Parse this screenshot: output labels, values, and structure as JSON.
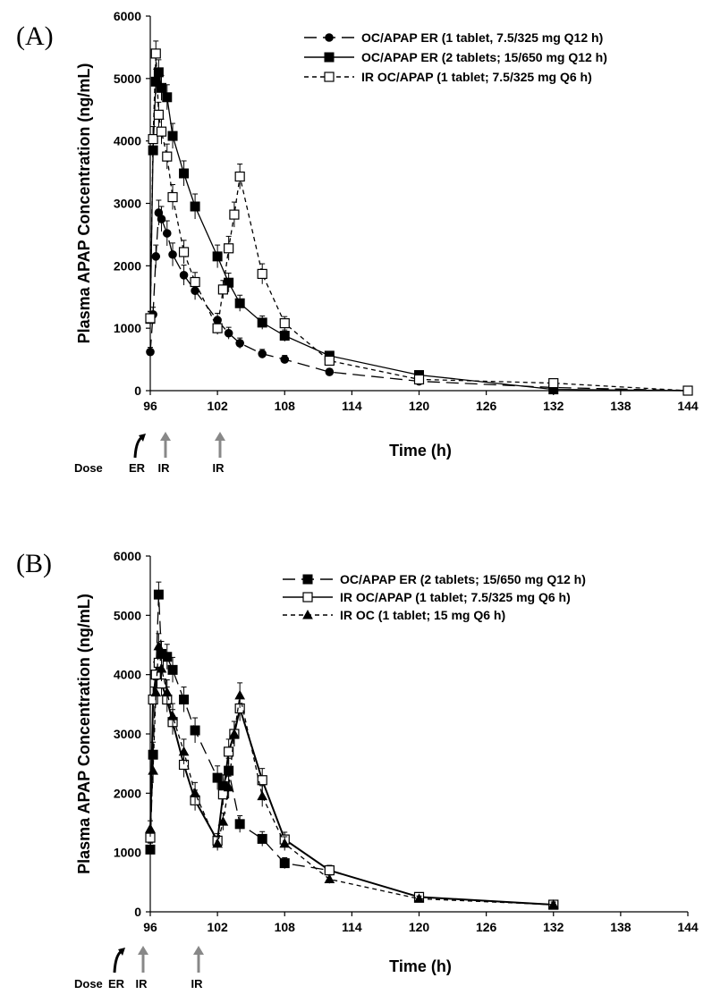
{
  "chart_data": [
    {
      "panel": "(A)",
      "type": "line",
      "xlabel": "Time (h)",
      "ylabel": "Plasma APAP Concentration (ng/mL)",
      "xlim": [
        96,
        144
      ],
      "ylim": [
        0,
        6000
      ],
      "xticks": [
        "96",
        "102",
        "108",
        "114",
        "120",
        "126",
        "132",
        "138",
        "144"
      ],
      "yticks": [
        "0",
        "1000",
        "2000",
        "3000",
        "4000",
        "5000",
        "6000"
      ],
      "legend_position": "top-right",
      "series": [
        {
          "name": "OC/APAP ER (1 tablet, 7.5/325 mg Q12 h)",
          "marker": "circle-filled",
          "dash": "long-dash",
          "x": [
            96,
            96.25,
            96.5,
            96.75,
            97,
            97.5,
            98,
            99,
            100,
            102,
            103,
            104,
            106,
            108,
            112,
            120,
            132,
            144
          ],
          "y": [
            620,
            1220,
            2150,
            2850,
            2750,
            2520,
            2180,
            1850,
            1600,
            1130,
            920,
            760,
            590,
            500,
            300,
            150,
            50,
            0
          ]
        },
        {
          "name": "OC/APAP ER (2 tablets; 15/650 mg Q12 h)",
          "marker": "square-filled",
          "dash": "solid",
          "x": [
            96,
            96.25,
            96.5,
            96.75,
            97,
            97.5,
            98,
            99,
            100,
            102,
            103,
            104,
            106,
            108,
            112,
            120,
            132,
            144
          ],
          "y": [
            1150,
            3850,
            4950,
            5100,
            4850,
            4700,
            4080,
            3480,
            2950,
            2150,
            1730,
            1400,
            1090,
            880,
            560,
            250,
            20,
            0
          ]
        },
        {
          "name": "IR OC/APAP (1 tablet; 7.5/325 mg Q6 h)",
          "marker": "square-open",
          "dash": "short-dash",
          "x": [
            96,
            96.25,
            96.5,
            96.75,
            97,
            97.5,
            98,
            99,
            100,
            102,
            102.5,
            103,
            103.5,
            104,
            106,
            108,
            112,
            120,
            132,
            144
          ],
          "y": [
            1160,
            4030,
            5400,
            4420,
            4150,
            3750,
            3100,
            2220,
            1740,
            1000,
            1620,
            2280,
            2820,
            3430,
            1870,
            1080,
            480,
            180,
            120,
            0
          ]
        }
      ]
    },
    {
      "panel": "(B)",
      "type": "line",
      "xlabel": "Time (h)",
      "ylabel": "Plasma APAP Concentration (ng/mL)",
      "xlim": [
        96,
        144
      ],
      "ylim": [
        0,
        6000
      ],
      "xticks": [
        "96",
        "102",
        "108",
        "114",
        "120",
        "126",
        "132",
        "138",
        "144"
      ],
      "yticks": [
        "0",
        "1000",
        "2000",
        "3000",
        "4000",
        "5000",
        "6000"
      ],
      "legend_position": "top-right",
      "series": [
        {
          "name": "OC/APAP ER (2 tablets; 15/650 mg Q12 h)",
          "marker": "square-filled",
          "dash": "long-dash",
          "x": [
            96,
            96.25,
            96.5,
            96.75,
            97,
            97.5,
            98,
            99,
            100,
            102,
            102.5,
            103,
            104,
            106,
            108,
            112,
            120,
            132
          ],
          "y": [
            1050,
            2650,
            4000,
            5350,
            4350,
            4300,
            4080,
            3580,
            3060,
            2260,
            2120,
            2380,
            1480,
            1230,
            820,
            700,
            250,
            120
          ]
        },
        {
          "name": "IR OC/APAP (1 tablet; 7.5/325 mg Q6 h)",
          "marker": "square-open",
          "dash": "solid",
          "x": [
            96,
            96.25,
            96.5,
            96.75,
            97,
            97.5,
            98,
            99,
            100,
            102,
            102.5,
            103,
            103.5,
            104,
            106,
            108,
            112,
            120,
            132
          ],
          "y": [
            1250,
            3580,
            4000,
            4200,
            3850,
            3580,
            3200,
            2480,
            1880,
            1200,
            1980,
            2700,
            3000,
            3430,
            2220,
            1220,
            700,
            250,
            120
          ]
        },
        {
          "name": "IR OC (1 tablet; 15 mg Q6 h)",
          "marker": "triangle-filled",
          "dash": "short-dash",
          "x": [
            96,
            96.25,
            96.5,
            96.75,
            97,
            97.5,
            98,
            99,
            100,
            102,
            102.5,
            103,
            103.5,
            104,
            106,
            108,
            112,
            120,
            132
          ],
          "y": [
            1400,
            2380,
            3700,
            4480,
            4100,
            3700,
            3300,
            2700,
            2000,
            1150,
            1520,
            2100,
            3000,
            3650,
            1950,
            1150,
            550,
            220,
            120
          ]
        }
      ]
    }
  ],
  "dose_annotations": [
    {
      "panel": "(A)",
      "label": "Dose",
      "arrows": [
        {
          "text": "ER",
          "color": "#000000"
        },
        {
          "text": "IR",
          "color": "#888888"
        },
        {
          "text": "IR",
          "color": "#888888"
        }
      ]
    },
    {
      "panel": "(B)",
      "label": "Dose",
      "arrows": [
        {
          "text": "ER",
          "color": "#000000"
        },
        {
          "text": "IR",
          "color": "#888888"
        },
        {
          "text": "IR",
          "color": "#888888"
        }
      ]
    }
  ]
}
